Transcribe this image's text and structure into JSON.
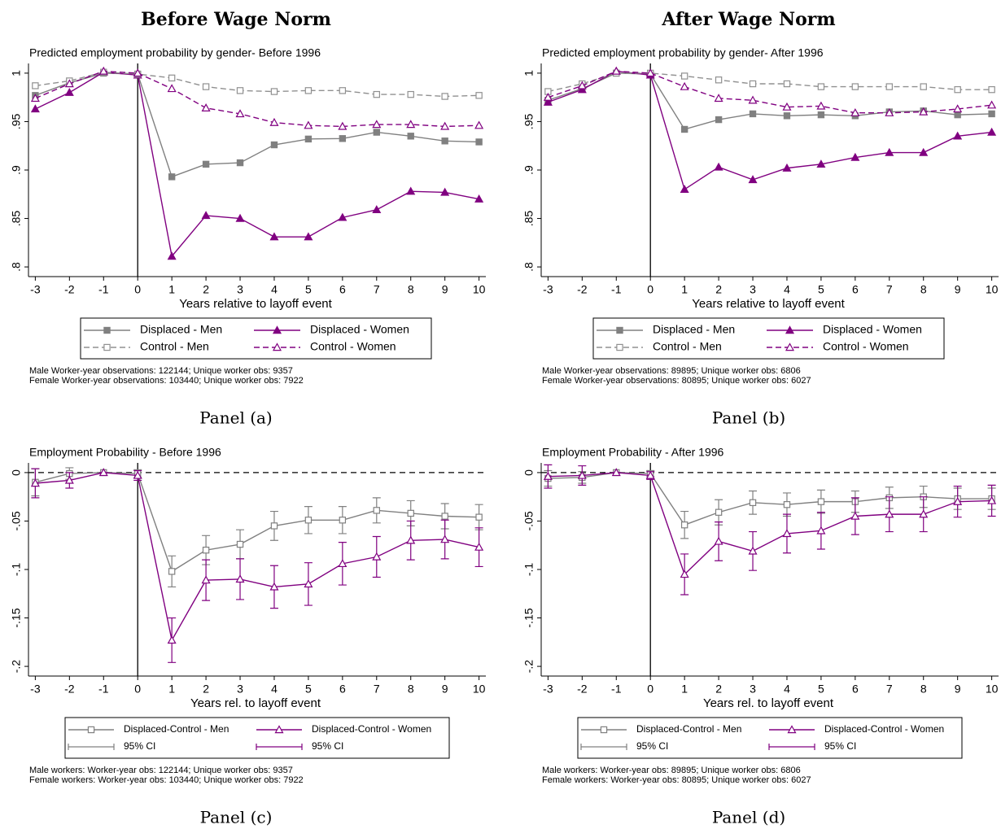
{
  "column_titles": [
    "Before Wage Norm",
    "After Wage Norm"
  ],
  "chart_data": [
    {
      "type": "line",
      "title": "Predicted employment probability by gender- Before 1996",
      "xlabel": "Years relative to layoff event",
      "x": [
        -3,
        -2,
        -1,
        0,
        1,
        2,
        3,
        4,
        5,
        6,
        7,
        8,
        9,
        10
      ],
      "xlim": [
        -3.2,
        10.2
      ],
      "xticks": [
        -3,
        -2,
        -1,
        0,
        1,
        2,
        3,
        4,
        5,
        6,
        7,
        8,
        9,
        10
      ],
      "ylim": [
        0.79,
        1.01
      ],
      "yticks": [
        {
          "value": 0.8,
          "label": ".8"
        },
        {
          "value": 0.85,
          "label": ".85"
        },
        {
          "value": 0.9,
          "label": ".9"
        },
        {
          "value": 0.95,
          "label": ".95"
        },
        1
      ],
      "vline": 0,
      "series": [
        {
          "name": "Displaced - Men",
          "color": "#808080",
          "dash": false,
          "marker": "square",
          "values": [
            0.977,
            0.99,
            1.0,
            0.999,
            0.893,
            0.906,
            0.9075,
            0.926,
            0.932,
            0.9325,
            0.939,
            0.935,
            0.93,
            0.929
          ]
        },
        {
          "name": "Displaced - Women",
          "color": "#800080",
          "dash": false,
          "marker": "triangle",
          "values": [
            0.963,
            0.98,
            1.001,
            0.998,
            0.811,
            0.853,
            0.85,
            0.831,
            0.831,
            0.851,
            0.859,
            0.878,
            0.877,
            0.87
          ]
        },
        {
          "name": "Control - Men",
          "color": "#909090",
          "dash": true,
          "marker": "square-open",
          "values": [
            0.987,
            0.992,
            1.001,
            0.999,
            0.995,
            0.986,
            0.982,
            0.981,
            0.982,
            0.982,
            0.978,
            0.978,
            0.976,
            0.977
          ]
        },
        {
          "name": "Control - Women",
          "color": "#800080",
          "dash": true,
          "marker": "triangle-open",
          "values": [
            0.974,
            0.989,
            1.002,
            1.0,
            0.984,
            0.964,
            0.958,
            0.949,
            0.946,
            0.945,
            0.947,
            0.947,
            0.945,
            0.946
          ]
        }
      ],
      "notes": [
        "Male Worker-year observations: 122144; Unique worker obs: 9357",
        "Female Worker-year observations: 103440; Unique worker obs: 7922"
      ],
      "caption": "Panel (a)"
    },
    {
      "type": "line",
      "title": "Predicted employment probability by gender- After 1996",
      "xlabel": "Years relative to layoff event",
      "x": [
        -3,
        -2,
        -1,
        0,
        1,
        2,
        3,
        4,
        5,
        6,
        7,
        8,
        9,
        10
      ],
      "xlim": [
        -3.2,
        10.2
      ],
      "xticks": [
        -3,
        -2,
        -1,
        0,
        1,
        2,
        3,
        4,
        5,
        6,
        7,
        8,
        9,
        10
      ],
      "ylim": [
        0.79,
        1.01
      ],
      "yticks": [
        {
          "value": 0.8,
          "label": ".8"
        },
        {
          "value": 0.85,
          "label": ".85"
        },
        {
          "value": 0.9,
          "label": ".9"
        },
        {
          "value": 0.95,
          "label": ".95"
        },
        1
      ],
      "vline": 0,
      "series": [
        {
          "name": "Displaced - Men",
          "color": "#808080",
          "dash": false,
          "marker": "square",
          "values": [
            0.972,
            0.984,
            1.0,
            0.999,
            0.942,
            0.952,
            0.958,
            0.956,
            0.957,
            0.956,
            0.96,
            0.961,
            0.957,
            0.958
          ]
        },
        {
          "name": "Displaced - Women",
          "color": "#800080",
          "dash": false,
          "marker": "triangle",
          "values": [
            0.97,
            0.983,
            1.002,
            0.998,
            0.88,
            0.903,
            0.89,
            0.902,
            0.906,
            0.913,
            0.918,
            0.918,
            0.935,
            0.939
          ]
        },
        {
          "name": "Control - Men",
          "color": "#909090",
          "dash": true,
          "marker": "square-open",
          "values": [
            0.981,
            0.989,
            1.0,
            1.0,
            0.997,
            0.993,
            0.989,
            0.989,
            0.986,
            0.986,
            0.986,
            0.986,
            0.983,
            0.983
          ]
        },
        {
          "name": "Control - Women",
          "color": "#800080",
          "dash": true,
          "marker": "triangle-open",
          "values": [
            0.975,
            0.987,
            1.002,
            1.0,
            0.986,
            0.974,
            0.972,
            0.965,
            0.966,
            0.959,
            0.959,
            0.96,
            0.963,
            0.967
          ]
        }
      ],
      "notes": [
        "Male Worker-year observations: 89895; Unique worker obs: 6806",
        "Female Worker-year observations: 80895; Unique worker obs: 6027"
      ],
      "caption": "Panel (b)"
    },
    {
      "type": "line",
      "title": "Employment Probability - Before 1996",
      "xlabel": "Years rel. to layoff event",
      "x": [
        -3,
        -2,
        -1,
        0,
        1,
        2,
        3,
        4,
        5,
        6,
        7,
        8,
        9,
        10
      ],
      "xlim": [
        -3.2,
        10.2
      ],
      "xticks": [
        -3,
        -2,
        -1,
        0,
        1,
        2,
        3,
        4,
        5,
        6,
        7,
        8,
        9,
        10
      ],
      "ylim": [
        -0.21,
        0.01
      ],
      "yticks": [
        {
          "value": -0.2,
          "label": "-.2"
        },
        {
          "value": -0.15,
          "label": "-.15"
        },
        {
          "value": -0.1,
          "label": "-.1"
        },
        {
          "value": -0.05,
          "label": "-.05"
        },
        0
      ],
      "vline": 0,
      "hline": 0,
      "series": [
        {
          "name": "Displaced-Control - Men",
          "ci_name": "95% CI",
          "color": "#808080",
          "dash": false,
          "marker": "square-open",
          "values": [
            -0.01,
            -0.001,
            0,
            -0.001,
            -0.102,
            -0.08,
            -0.074,
            -0.055,
            -0.049,
            -0.049,
            -0.039,
            -0.042,
            -0.045,
            -0.046
          ],
          "errors": [
            0.014,
            0.006,
            0,
            0.004,
            0.016,
            0.015,
            0.015,
            0.015,
            0.014,
            0.014,
            0.013,
            0.013,
            0.013,
            0.013
          ]
        },
        {
          "name": "Displaced-Control - Women",
          "ci_name": "95% CI",
          "color": "#800080",
          "dash": false,
          "marker": "triangle-open",
          "values": [
            -0.011,
            -0.008,
            0,
            -0.003,
            -0.173,
            -0.111,
            -0.11,
            -0.118,
            -0.115,
            -0.094,
            -0.087,
            -0.07,
            -0.069,
            -0.077
          ],
          "errors": [
            0.015,
            0.008,
            0,
            0.005,
            0.023,
            0.021,
            0.021,
            0.022,
            0.022,
            0.022,
            0.021,
            0.02,
            0.02,
            0.02
          ]
        }
      ],
      "notes": [
        "Male workers: Worker-year obs: 122144; Unique worker obs: 9357",
        "Female workers: Worker-year obs: 103440; Unique worker obs: 7922"
      ],
      "caption": "Panel (c)"
    },
    {
      "type": "line",
      "title": "Employment Probability - After 1996",
      "xlabel": "Years rel. to layoff event",
      "x": [
        -3,
        -2,
        -1,
        0,
        1,
        2,
        3,
        4,
        5,
        6,
        7,
        8,
        9,
        10
      ],
      "xlim": [
        -3.2,
        10.2
      ],
      "xticks": [
        -3,
        -2,
        -1,
        0,
        1,
        2,
        3,
        4,
        5,
        6,
        7,
        8,
        9,
        10
      ],
      "ylim": [
        -0.21,
        0.01
      ],
      "yticks": [
        {
          "value": -0.2,
          "label": "-.2"
        },
        {
          "value": -0.15,
          "label": "-.15"
        },
        {
          "value": -0.1,
          "label": "-.1"
        },
        {
          "value": -0.05,
          "label": "-.05"
        },
        0
      ],
      "vline": 0,
      "hline": 0,
      "series": [
        {
          "name": "Displaced-Control - Men",
          "ci_name": "95% CI",
          "color": "#808080",
          "dash": false,
          "marker": "square-open",
          "values": [
            -0.006,
            -0.005,
            0,
            -0.001,
            -0.054,
            -0.041,
            -0.031,
            -0.033,
            -0.03,
            -0.03,
            -0.026,
            -0.025,
            -0.027,
            -0.027
          ],
          "errors": [
            0.008,
            0.006,
            0,
            0.003,
            0.014,
            0.013,
            0.012,
            0.012,
            0.012,
            0.011,
            0.011,
            0.011,
            0.011,
            0.011
          ]
        },
        {
          "name": "Displaced-Control - Women",
          "ci_name": "95% CI",
          "color": "#800080",
          "dash": false,
          "marker": "triangle-open",
          "values": [
            -0.004,
            -0.003,
            0,
            -0.003,
            -0.105,
            -0.071,
            -0.081,
            -0.063,
            -0.06,
            -0.045,
            -0.043,
            -0.043,
            -0.03,
            -0.029
          ],
          "errors": [
            0.012,
            0.01,
            0,
            0.004,
            0.021,
            0.02,
            0.02,
            0.02,
            0.019,
            0.019,
            0.018,
            0.018,
            0.016,
            0.016
          ]
        }
      ],
      "notes": [
        "Male workers: Worker-year obs: 89895; Unique worker obs: 6806",
        "Female workers: Worker-year obs: 80895; Unique worker obs: 6027"
      ],
      "caption": "Panel (d)"
    }
  ]
}
